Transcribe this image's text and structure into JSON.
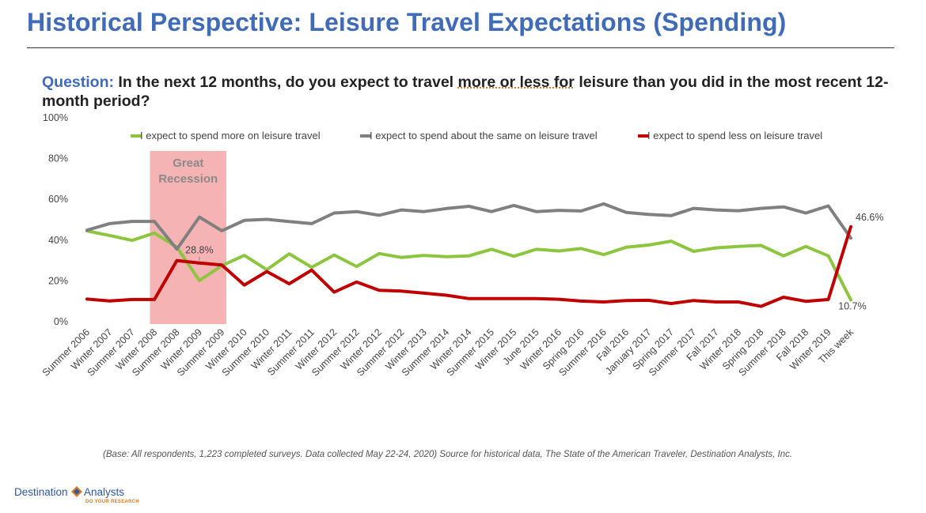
{
  "header": {
    "title": "Historical Perspective: Leisure Travel Expectations (Spending)"
  },
  "question": {
    "label": "Question:",
    "text_before": "In the next 12 months, do you expect to travel ",
    "emphasis": "more or less for",
    "text_after": " leisure than you did in the most recent 12-month period?"
  },
  "footnote": "(Base: All respondents, 1,223 completed surveys. Data collected May 22-24, 2020) Source for historical data, The State of the American Traveler, Destination Analysts, Inc.",
  "logo": {
    "word1": "Destination",
    "word2": "Analysts",
    "tagline": "DO YOUR RESEARCH"
  },
  "chart_data": {
    "type": "line",
    "title": "",
    "xlabel": "",
    "ylabel": "",
    "ylim": [
      0,
      100
    ],
    "yticks": [
      "0%",
      "20%",
      "40%",
      "60%",
      "80%",
      "100%"
    ],
    "grid": false,
    "legend_position": "top",
    "categories": [
      "Summer 2006",
      "Winter 2007",
      "Summer 2007",
      "Winter 2008",
      "Summer 2008",
      "Winter 2009",
      "Summer 2009",
      "Winter 2010",
      "Summer 2010",
      "Winter 2011",
      "Summer 2011",
      "Winter 2012",
      "Summer 2012",
      "Winter 2012",
      "Summer 2012",
      "Winter 2013",
      "Summer 2014",
      "Winter 2014",
      "Summer 2015",
      "Winter 2015",
      "June 2015",
      "Winter 2016",
      "Spring 2016",
      "Summer 2016",
      "Fall 2016",
      "January 2017",
      "Spring 2017",
      "Summer 2017",
      "Fall 2017",
      "Winter 2018",
      "Spring 2018",
      "Summer 2018",
      "Fall 2018",
      "Winter 2019",
      "This week"
    ],
    "series": [
      {
        "name": "I expect to spend more on leisure travel",
        "color": "#8cc63f",
        "values": [
          44.5,
          42.3,
          39.9,
          43.5,
          36.5,
          20.2,
          27.5,
          32.5,
          25.5,
          33.3,
          26.7,
          32.7,
          27.1,
          33.4,
          31.5,
          32.5,
          31.9,
          32.3,
          35.5,
          32.1,
          35.5,
          34.7,
          35.9,
          32.9,
          36.5,
          37.6,
          39.5,
          34.5,
          36.2,
          36.9,
          37.4,
          32.3,
          36.9,
          32.3,
          10.7
        ]
      },
      {
        "name": "I expect to spend about the same on leisure travel",
        "color": "#808080",
        "values": [
          44.9,
          48.1,
          49.2,
          49.2,
          35.6,
          51.3,
          44.6,
          49.7,
          50.2,
          49.1,
          48.1,
          53.3,
          54.0,
          52.2,
          54.8,
          54.0,
          55.5,
          56.6,
          54.0,
          57.0,
          54.0,
          54.6,
          54.3,
          57.8,
          53.6,
          52.6,
          52.0,
          55.6,
          54.8,
          54.4,
          55.6,
          56.3,
          53.3,
          56.8,
          41.0
        ]
      },
      {
        "name": "I expect to spend less on leisure travel",
        "color": "#c00000",
        "values": [
          11.1,
          10.2,
          10.9,
          10.9,
          30.0,
          28.8,
          27.8,
          18.0,
          24.6,
          18.6,
          25.3,
          14.5,
          19.5,
          15.4,
          15.0,
          14.0,
          13.0,
          11.3,
          11.3,
          11.3,
          11.3,
          11.0,
          10.1,
          9.7,
          10.4,
          10.5,
          8.9,
          10.4,
          9.7,
          9.7,
          7.5,
          12.0,
          10.0,
          10.9,
          46.6
        ]
      }
    ],
    "shaded_band": {
      "label_line1": "Great",
      "label_line2": "Recession",
      "from_category": "Winter 2008",
      "to_category": "Summer 2009",
      "color": "#f4a6a6"
    },
    "annotations": [
      {
        "text": "28.8%",
        "series": 2,
        "category": "Winter 2009"
      },
      {
        "text": "46.6%",
        "series": 2,
        "category": "This week"
      },
      {
        "text": "10.7%",
        "series": 0,
        "category": "This week"
      }
    ]
  }
}
